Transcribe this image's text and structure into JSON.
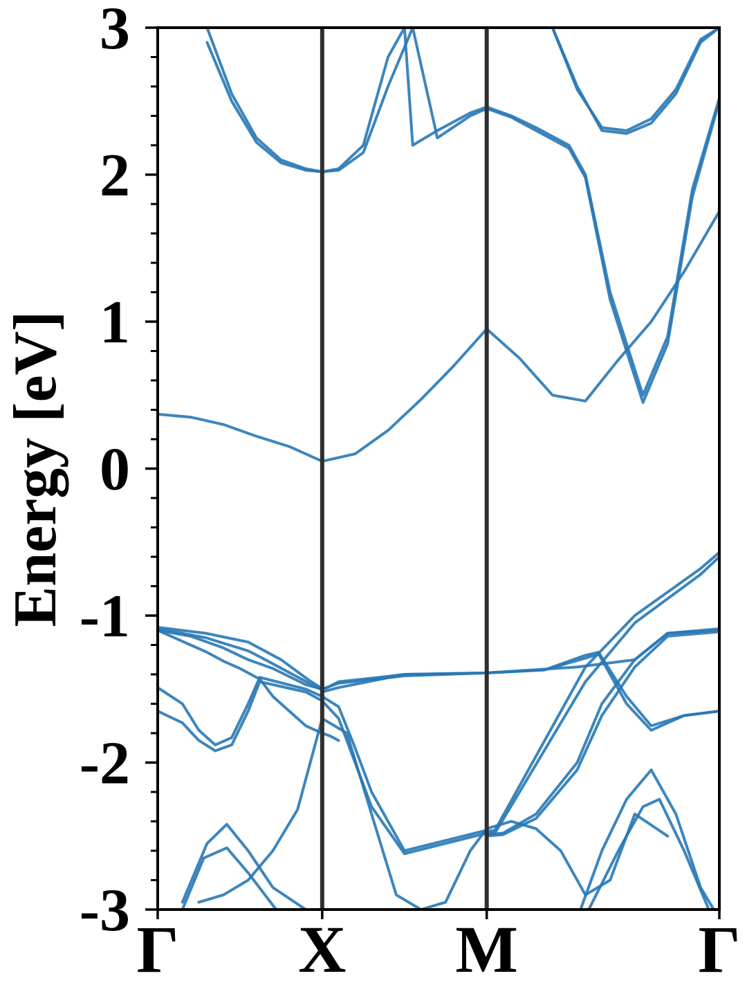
{
  "chart_data": {
    "type": "line",
    "title": "",
    "xlabel": "",
    "ylabel": "Energy [eV]",
    "ylim": [
      -3,
      3
    ],
    "yticks": [
      -3,
      -2,
      -1,
      0,
      1,
      2,
      3
    ],
    "ytick_labels": [
      "-3",
      "-2",
      "-1",
      "0",
      "1",
      "2",
      "3"
    ],
    "y_minor_step": 0.2,
    "x_high_symmetry_points": [
      {
        "label": "Γ",
        "k": 0.0
      },
      {
        "label": "X",
        "k": 1.0
      },
      {
        "label": "M",
        "k": 2.0
      },
      {
        "label": "Γ",
        "k": 3.414
      }
    ],
    "grid": false,
    "legend": "none",
    "colors": {
      "bands": "#2878b5",
      "vlines": "#2f2f2f",
      "axes": "#000000"
    },
    "series": [
      {
        "x": [
          0.0,
          0.29,
          0.55,
          0.75,
          0.92,
          0.99,
          1.0,
          1.1,
          1.5,
          2.0,
          2.35,
          2.6,
          2.68,
          2.85,
          3.0,
          3.2,
          3.414
        ],
        "y": [
          -1.08,
          -1.12,
          -1.18,
          -1.3,
          -1.44,
          -1.49,
          -1.5,
          -1.46,
          -1.41,
          -1.39,
          -1.37,
          -1.27,
          -1.25,
          -1.55,
          -1.75,
          -1.68,
          -1.65
        ]
      },
      {
        "x": [
          0.0,
          0.29,
          0.55,
          0.62,
          0.92,
          0.99,
          1.0,
          1.03,
          1.1,
          1.5,
          2.0,
          2.35,
          2.6,
          2.68,
          2.85,
          3.0,
          3.2,
          3.414
        ],
        "y": [
          -1.09,
          -1.15,
          -1.24,
          -1.28,
          -1.46,
          -1.5,
          -1.52,
          -1.51,
          -1.49,
          -1.4,
          -1.39,
          -1.37,
          -1.29,
          -1.26,
          -1.6,
          -1.78,
          -1.68,
          -1.65
        ]
      },
      {
        "x": [
          0.0,
          0.2,
          0.4,
          0.55,
          0.7,
          0.9,
          1.0,
          1.03,
          1.1,
          1.35,
          1.5,
          2.0,
          2.55,
          2.9,
          3.1,
          3.414
        ],
        "y": [
          -1.1,
          -1.14,
          -1.22,
          -1.3,
          -1.36,
          -1.47,
          -1.5,
          -1.49,
          -1.45,
          -1.42,
          -1.4,
          -1.39,
          -1.35,
          -1.3,
          -1.12,
          -1.09
        ]
      },
      {
        "x": [
          0.0,
          0.2,
          0.3,
          0.4,
          0.5,
          0.6,
          0.62,
          0.7,
          0.8,
          0.9,
          1.0,
          1.05,
          1.1
        ],
        "y": [
          -1.1,
          -1.2,
          -1.25,
          -1.31,
          -1.36,
          -1.42,
          -1.43,
          -1.55,
          -1.65,
          -1.75,
          -1.8,
          -1.82,
          -1.85
        ]
      },
      {
        "x": [
          0.0,
          0.15,
          0.25,
          0.35,
          0.45,
          0.55,
          0.62,
          0.9,
          1.0,
          1.1,
          1.2,
          1.3,
          1.5,
          2.0
        ],
        "y": [
          -1.49,
          -1.6,
          -1.78,
          -1.88,
          -1.83,
          -1.6,
          -1.42,
          -1.5,
          -1.55,
          -1.62,
          -1.9,
          -2.2,
          -2.6,
          -2.46
        ]
      },
      {
        "x": [
          0.0,
          0.15,
          0.25,
          0.35,
          0.45,
          0.55,
          0.62,
          0.9,
          1.0,
          1.1,
          1.2,
          1.3,
          1.5,
          2.0
        ],
        "y": [
          -1.65,
          -1.73,
          -1.85,
          -1.92,
          -1.88,
          -1.65,
          -1.45,
          -1.52,
          -1.58,
          -1.7,
          -2.0,
          -2.3,
          -2.62,
          -2.48
        ]
      },
      {
        "x": [
          0.0,
          0.2,
          0.4,
          0.6,
          0.8,
          1.0,
          1.2,
          1.4,
          1.6,
          1.8,
          2.0,
          2.2,
          2.4,
          2.6,
          2.8,
          3.0,
          3.2,
          3.414
        ],
        "y": [
          0.37,
          0.35,
          0.3,
          0.22,
          0.15,
          0.05,
          0.1,
          0.26,
          0.47,
          0.7,
          0.95,
          0.75,
          0.5,
          0.46,
          0.74,
          1.0,
          1.34,
          1.75
        ]
      },
      {
        "x": [
          0.25,
          0.4,
          0.55,
          0.7,
          0.85,
          1.0,
          1.15,
          1.3,
          1.45,
          1.6,
          1.75,
          1.9,
          2.0,
          2.15,
          2.3,
          2.45,
          2.6,
          2.75,
          2.9,
          3.1
        ],
        "y": [
          -2.95,
          -2.9,
          -2.8,
          -2.6,
          -2.32,
          -1.7,
          -1.8,
          -2.35,
          -2.9,
          -3.0,
          -2.95,
          -2.6,
          -2.45,
          -2.4,
          -2.45,
          -2.6,
          -2.9,
          -2.8,
          -2.35,
          -2.5
        ]
      },
      {
        "x": [
          0.15,
          0.3,
          0.42,
          0.55,
          0.7,
          0.9,
          1.0
        ],
        "y": [
          -2.95,
          -2.55,
          -2.42,
          -2.6,
          -2.85,
          -3.0,
          -3.0
        ]
      },
      {
        "x": [
          0.15,
          0.28,
          0.42,
          0.55,
          0.72
        ],
        "y": [
          -3.0,
          -2.65,
          -2.58,
          -2.75,
          -3.0
        ]
      },
      {
        "x": [
          2.57,
          2.7,
          2.85,
          3.0,
          3.15,
          3.3,
          3.38
        ],
        "y": [
          -3.0,
          -2.6,
          -2.25,
          -2.05,
          -2.35,
          -2.85,
          -3.0
        ]
      },
      {
        "x": [
          2.62,
          2.8,
          2.95,
          3.05,
          3.2,
          3.35
        ],
        "y": [
          -3.0,
          -2.6,
          -2.3,
          -2.25,
          -2.6,
          -3.0
        ]
      },
      {
        "x": [
          2.0,
          2.05,
          2.6,
          2.9,
          3.3,
          3.414
        ],
        "y": [
          -2.47,
          -2.46,
          -1.35,
          -1.0,
          -0.68,
          -0.57
        ]
      },
      {
        "x": [
          2.0,
          2.05,
          2.6,
          2.9,
          3.3,
          3.414
        ],
        "y": [
          -2.48,
          -2.48,
          -1.45,
          -1.05,
          -0.72,
          -0.6
        ]
      },
      {
        "x": [
          2.0,
          2.1,
          2.3,
          2.55,
          2.7,
          2.9,
          3.1,
          3.414
        ],
        "y": [
          -2.49,
          -2.48,
          -2.35,
          -2.0,
          -1.6,
          -1.3,
          -1.12,
          -1.1
        ]
      },
      {
        "x": [
          2.0,
          2.1,
          2.3,
          2.55,
          2.7,
          2.9,
          3.1,
          3.414
        ],
        "y": [
          -2.5,
          -2.49,
          -2.38,
          -2.05,
          -1.68,
          -1.35,
          -1.14,
          -1.11
        ]
      },
      {
        "x": [
          0.3,
          0.45,
          0.6,
          0.75,
          0.9,
          1.0,
          1.1,
          1.25,
          1.4,
          1.5,
          1.55,
          1.7,
          1.9,
          2.0
        ],
        "y": [
          3.0,
          2.55,
          2.25,
          2.1,
          2.04,
          2.02,
          2.04,
          2.2,
          2.8,
          3.0,
          2.2,
          2.3,
          2.42,
          2.46
        ]
      },
      {
        "x": [
          0.3,
          0.45,
          0.6,
          0.75,
          0.9,
          1.0,
          1.1,
          1.25,
          1.4,
          1.55,
          1.7,
          1.9,
          2.0
        ],
        "y": [
          2.9,
          2.5,
          2.22,
          2.08,
          2.03,
          2.02,
          2.03,
          2.15,
          2.6,
          3.0,
          2.25,
          2.4,
          2.45
        ]
      },
      {
        "x": [
          2.0,
          2.15,
          2.3,
          2.5,
          2.6,
          2.75,
          2.95,
          3.1,
          3.25,
          3.414
        ],
        "y": [
          2.46,
          2.4,
          2.32,
          2.2,
          2.0,
          1.2,
          0.5,
          0.9,
          1.9,
          2.52
        ]
      },
      {
        "x": [
          2.0,
          2.15,
          2.3,
          2.5,
          2.6,
          2.75,
          2.95,
          3.1,
          3.25,
          3.414
        ],
        "y": [
          2.45,
          2.39,
          2.3,
          2.18,
          1.98,
          1.15,
          0.45,
          0.85,
          1.85,
          2.5
        ]
      },
      {
        "x": [
          2.4,
          2.55,
          2.7,
          2.85,
          3.0,
          3.15,
          3.3,
          3.414
        ],
        "y": [
          3.0,
          2.6,
          2.3,
          2.28,
          2.35,
          2.55,
          2.9,
          3.0
        ]
      },
      {
        "x": [
          2.4,
          2.55,
          2.7,
          2.85,
          3.0,
          3.15,
          3.3,
          3.414
        ],
        "y": [
          3.0,
          2.58,
          2.32,
          2.3,
          2.38,
          2.58,
          2.92,
          3.0
        ]
      }
    ]
  }
}
